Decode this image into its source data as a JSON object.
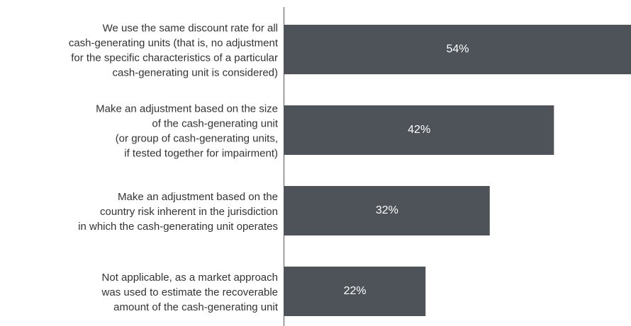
{
  "chart_data": {
    "type": "bar",
    "orientation": "horizontal",
    "categories": [
      [
        "We use the same discount rate for all",
        "cash-generating units (that is, no adjustment",
        "for the specific characteristics of a particular",
        "cash-generating unit is considered)"
      ],
      [
        "Make an adjustment based on the size",
        "of the cash-generating unit",
        "(or group of cash-generating units,",
        "if tested together for impairment)"
      ],
      [
        "Make an adjustment based on the",
        "country risk inherent in the jurisdiction",
        "in which the cash-generating unit operates"
      ],
      [
        "Not applicable, as a market approach",
        "was used to estimate the recoverable",
        "amount of the cash-generating unit"
      ]
    ],
    "values": [
      54,
      42,
      32,
      22
    ],
    "value_labels": [
      "54%",
      "42%",
      "32%",
      "22%"
    ],
    "color": "#4d5358"
  }
}
